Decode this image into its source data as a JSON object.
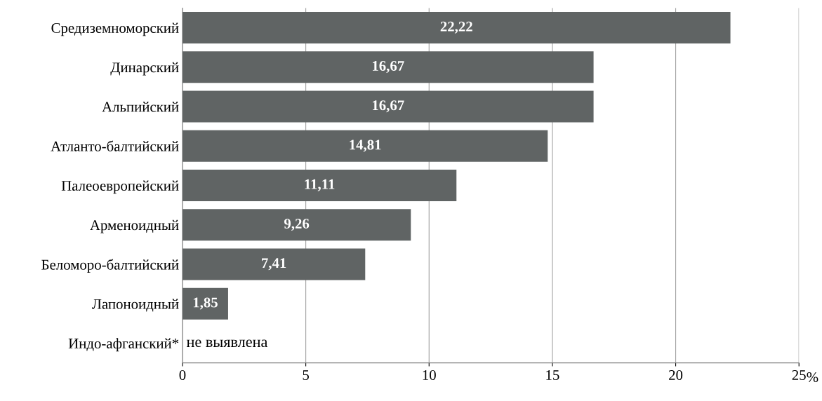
{
  "chart_data": {
    "type": "bar",
    "orientation": "horizontal",
    "xlabel": "%",
    "categories": [
      "Средиземноморский",
      "Динарский",
      "Альпийский",
      "Атланто-балтийский",
      "Палеоевропейский",
      "Арменоидный",
      "Беломоро-балтийский",
      "Лапоноидный",
      "Индо-афганский*"
    ],
    "values": [
      22.22,
      16.67,
      16.67,
      14.81,
      11.11,
      9.26,
      7.41,
      1.85,
      null
    ],
    "value_labels": [
      "22,22",
      "16,67",
      "16,67",
      "14,81",
      "11,11",
      "9,26",
      "7,41",
      "1,85",
      null
    ],
    "color": "#606464",
    "xlim": [
      0,
      25
    ],
    "xticks": [
      0,
      5,
      10,
      15,
      20,
      25
    ],
    "grid": "x",
    "annotations": [
      "не выявлена"
    ]
  }
}
